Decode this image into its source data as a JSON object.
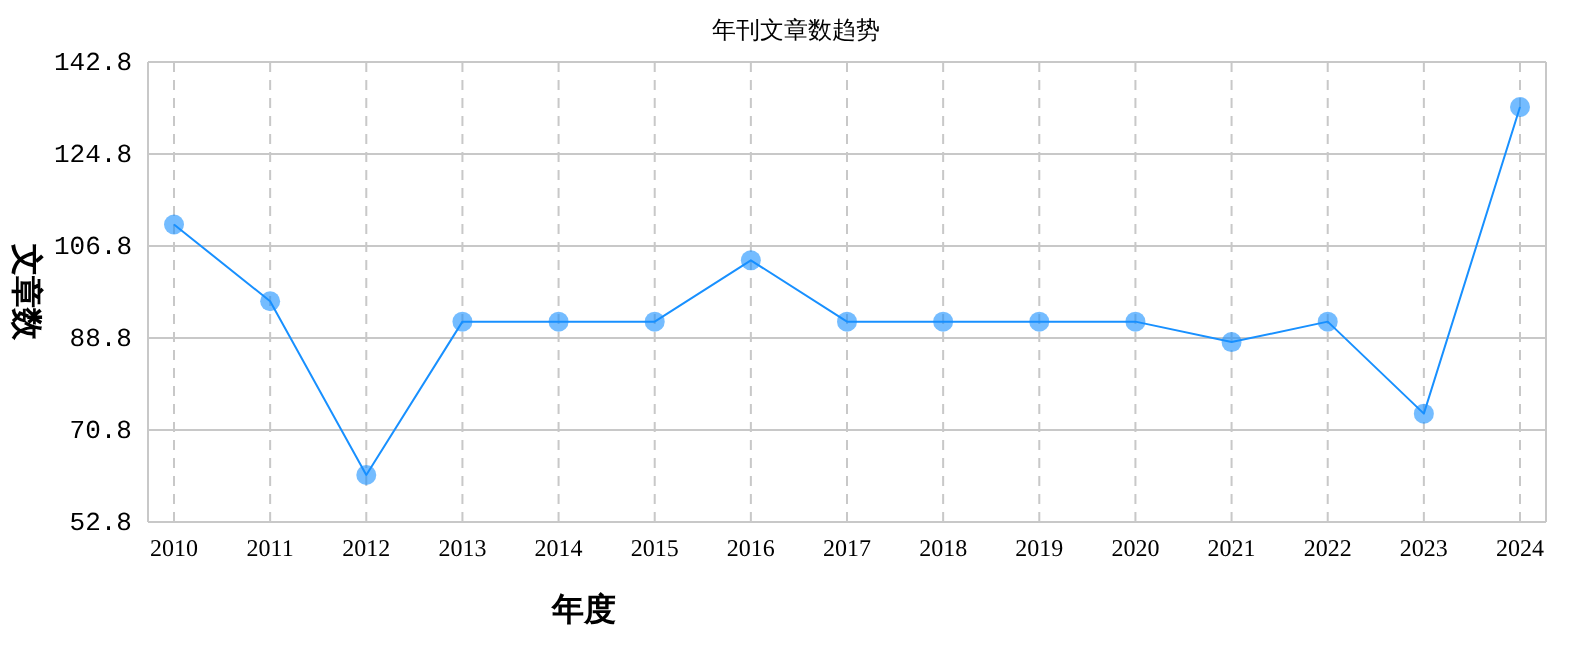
{
  "chart_data": {
    "type": "line",
    "title": "年刊文章数趋势",
    "xlabel": "年度",
    "ylabel": "文章数",
    "categories": [
      "2010",
      "2011",
      "2012",
      "2013",
      "2014",
      "2015",
      "2016",
      "2017",
      "2018",
      "2019",
      "2020",
      "2021",
      "2022",
      "2023",
      "2024"
    ],
    "series": [
      {
        "color": "#1890ff",
        "values": [
          111,
          96,
          62,
          92,
          92,
          92,
          104,
          92,
          92,
          92,
          92,
          88,
          92,
          74,
          134
        ]
      }
    ],
    "ylim": [
      52.8,
      142.8
    ],
    "yticks": [
      52.8,
      70.8,
      88.8,
      106.8,
      124.8,
      142.8
    ],
    "grid": true,
    "marker": "circle",
    "line_style": "solid"
  }
}
